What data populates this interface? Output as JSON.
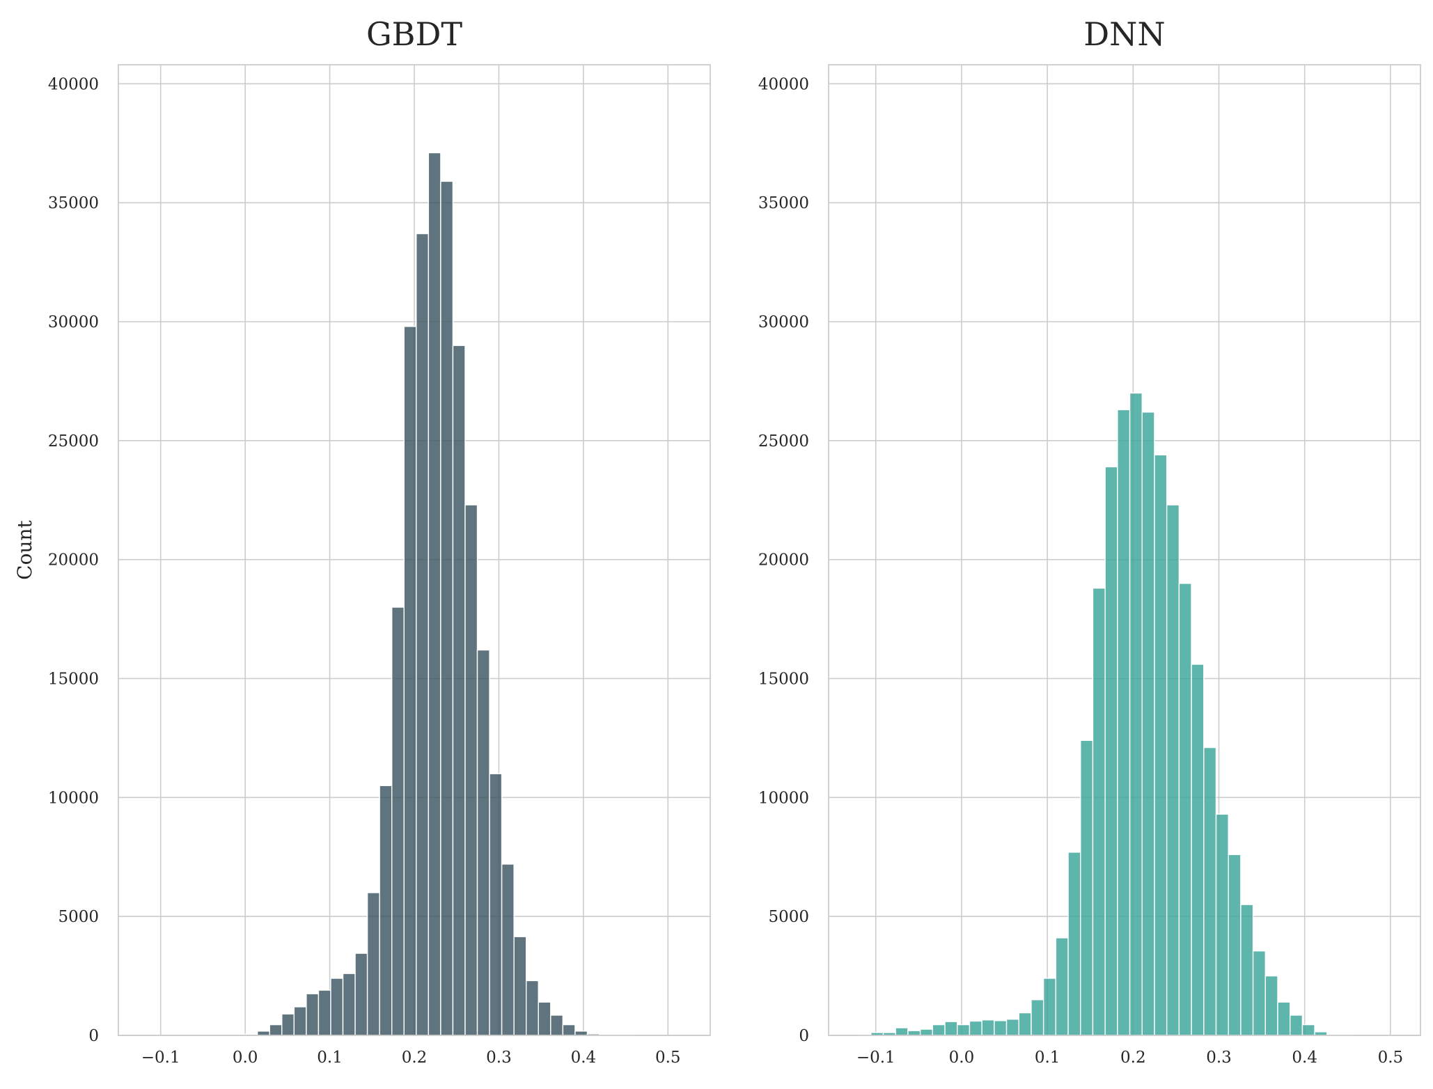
{
  "chart_data": [
    {
      "type": "bar",
      "subtype": "histogram",
      "title": "GBDT",
      "xlabel": "",
      "ylabel": "Count",
      "xlim": [
        -0.15,
        0.55
      ],
      "ylim": [
        0,
        40800
      ],
      "xticks": [
        "−0.1",
        "0.0",
        "0.1",
        "0.2",
        "0.3",
        "0.4",
        "0.5"
      ],
      "xtick_values": [
        -0.1,
        0.0,
        0.1,
        0.2,
        0.3,
        0.4,
        0.5
      ],
      "yticks": [
        "0",
        "5000",
        "10000",
        "15000",
        "20000",
        "25000",
        "30000",
        "35000",
        "40000"
      ],
      "ytick_values": [
        0,
        5000,
        10000,
        15000,
        20000,
        25000,
        30000,
        35000,
        40000
      ],
      "grid": true,
      "color": "#3d5663",
      "bin_start": 0.0,
      "bin_width": 0.01445,
      "values": [
        50,
        180,
        450,
        900,
        1200,
        1750,
        1900,
        2400,
        2600,
        3450,
        6000,
        10500,
        18000,
        29800,
        33700,
        37100,
        35900,
        29000,
        22300,
        16200,
        11000,
        7200,
        4150,
        2300,
        1400,
        850,
        450,
        180,
        60,
        20,
        10,
        5
      ]
    },
    {
      "type": "bar",
      "subtype": "histogram",
      "title": "DNN",
      "xlabel": "",
      "ylabel": "",
      "xlim": [
        -0.155,
        0.535
      ],
      "ylim": [
        0,
        40800
      ],
      "xticks": [
        "−0.1",
        "0.0",
        "0.1",
        "0.2",
        "0.3",
        "0.4",
        "0.5"
      ],
      "xtick_values": [
        -0.1,
        0.0,
        0.1,
        0.2,
        0.3,
        0.4,
        0.5
      ],
      "yticks": [
        "0",
        "5000",
        "10000",
        "15000",
        "20000",
        "25000",
        "30000",
        "35000",
        "40000"
      ],
      "ytick_values": [
        0,
        5000,
        10000,
        15000,
        20000,
        25000,
        30000,
        35000,
        40000
      ],
      "grid": true,
      "color": "#3aa598",
      "bin_start": -0.12,
      "bin_width": 0.01437,
      "values": [
        10,
        120,
        120,
        320,
        200,
        260,
        450,
        580,
        450,
        600,
        650,
        620,
        680,
        950,
        1500,
        2400,
        4100,
        7700,
        12400,
        18800,
        23900,
        26300,
        27000,
        26200,
        24400,
        22300,
        19000,
        15600,
        12100,
        9300,
        7600,
        5500,
        3550,
        2500,
        1400,
        850,
        450,
        150,
        30,
        10
      ]
    }
  ]
}
